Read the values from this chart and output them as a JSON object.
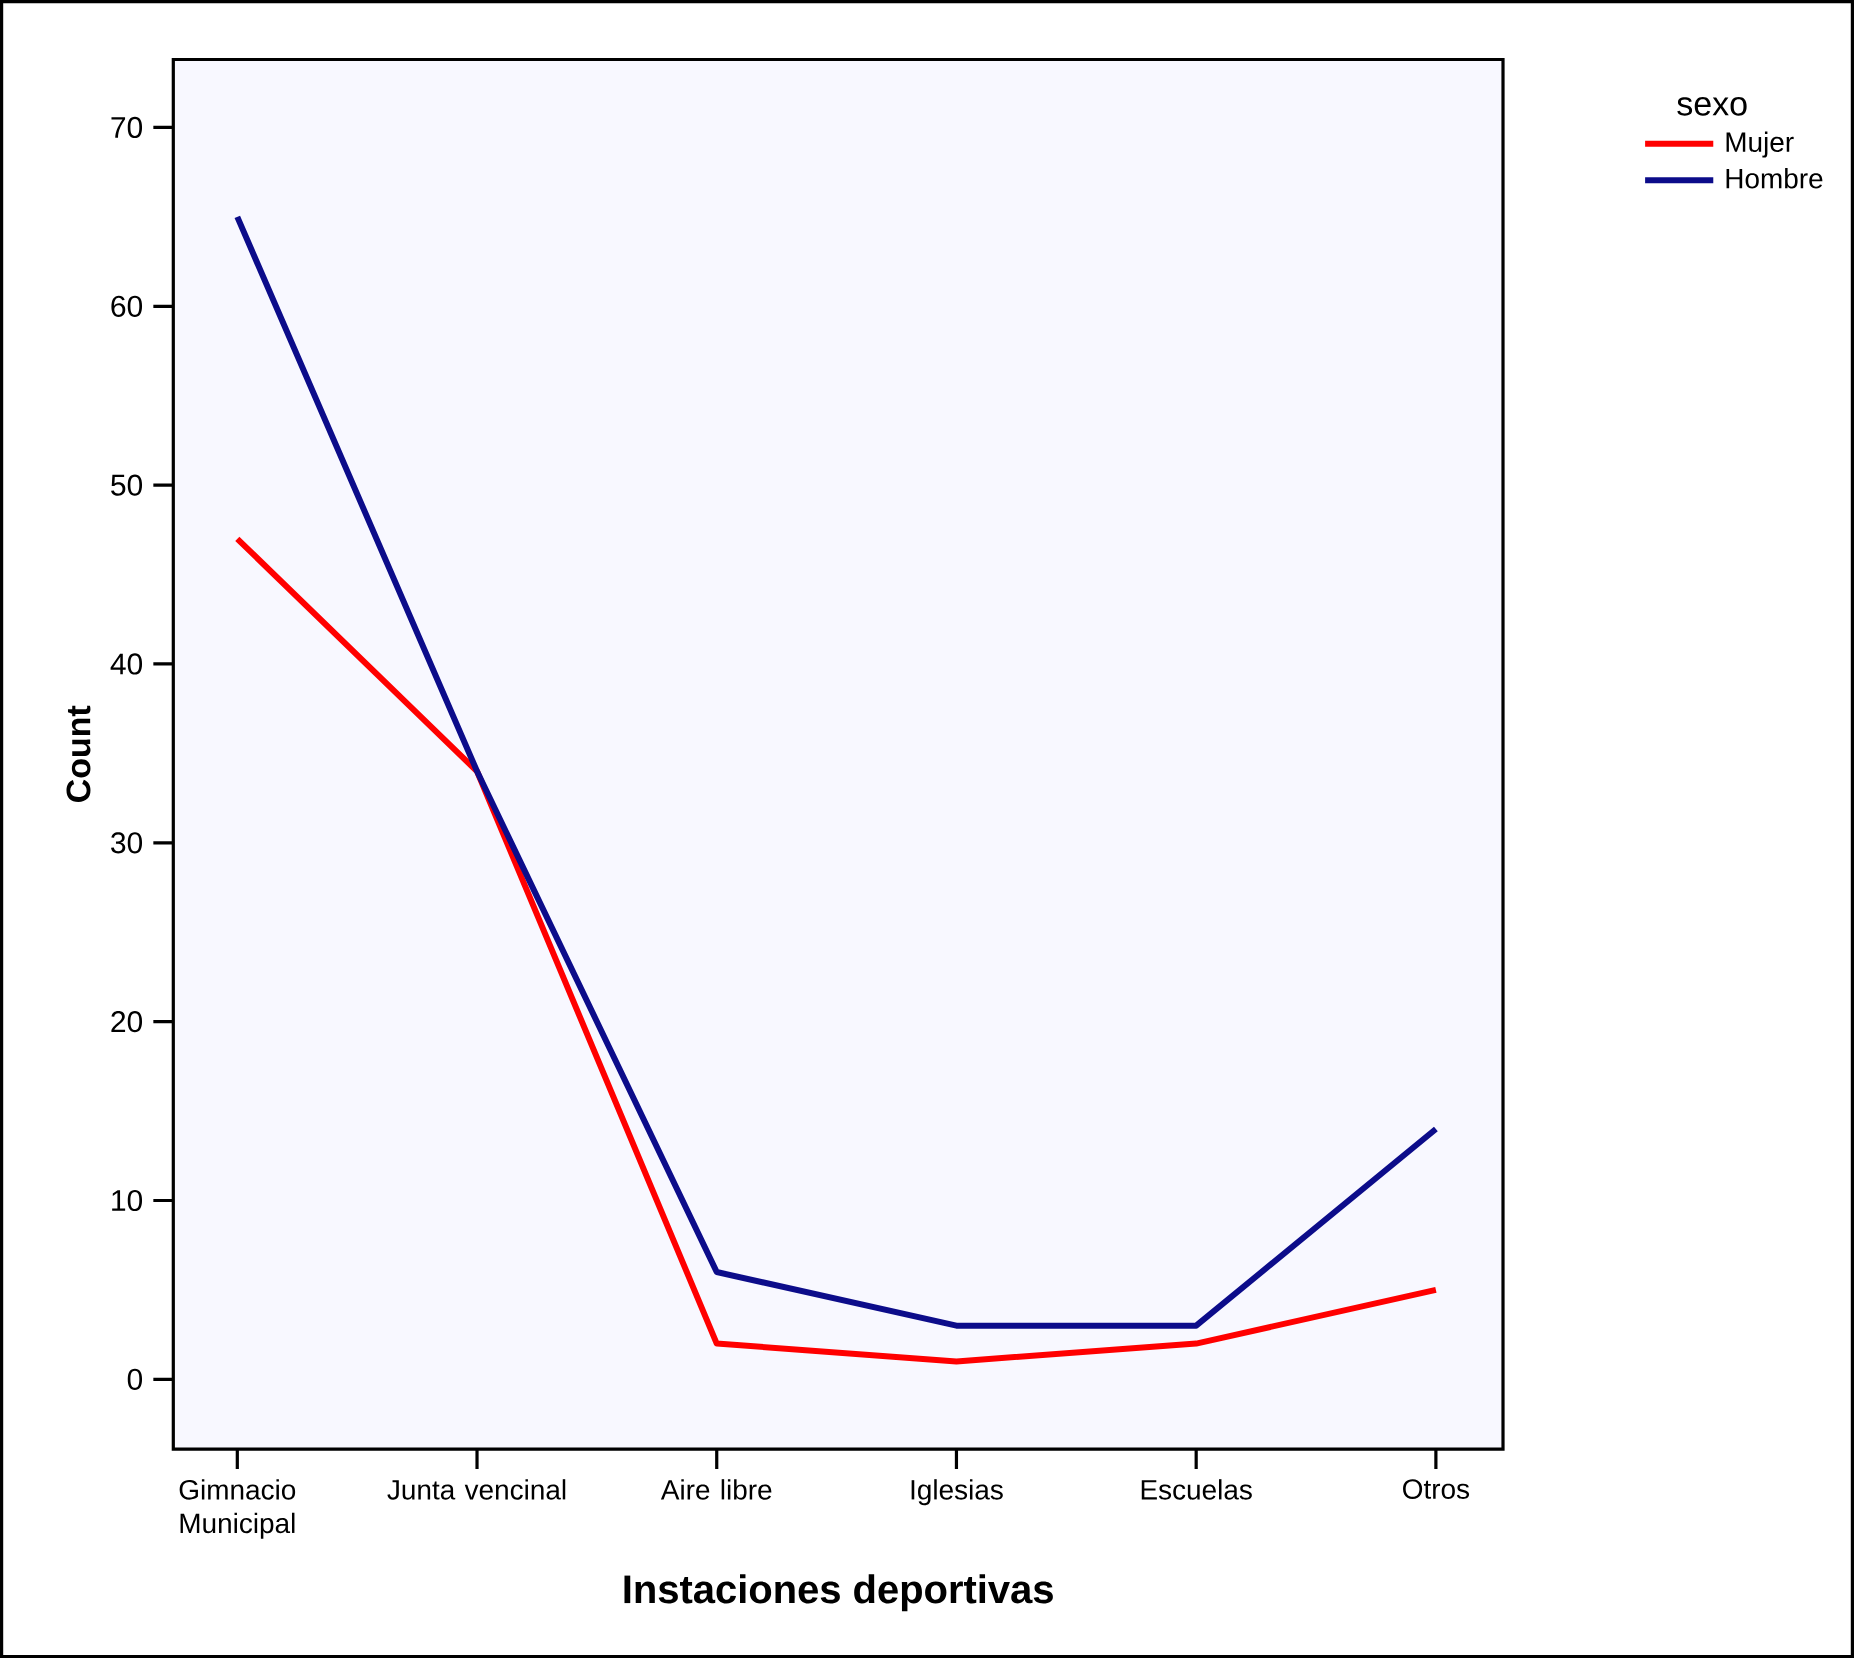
{
  "chart_data": {
    "type": "line",
    "xlabel": "Instaciones deportivas",
    "ylabel": "Count",
    "legend_title": "sexo",
    "categories": [
      "Gimnacio Municipal",
      "Junta vencinal",
      "Aire libre",
      "Iglesias",
      "Escuelas",
      "Otros"
    ],
    "series": [
      {
        "name": "Mujer",
        "color": "#ff0000",
        "values": [
          47,
          34,
          2,
          1,
          2,
          5
        ]
      },
      {
        "name": "Hombre",
        "color": "#0c0c8a",
        "values": [
          65,
          34,
          6,
          3,
          3,
          14
        ]
      }
    ],
    "ylim": [
      -3.9,
      73.8
    ],
    "yticks": [
      0,
      10,
      20,
      30,
      40,
      50,
      60,
      70
    ],
    "legend": "top right"
  }
}
